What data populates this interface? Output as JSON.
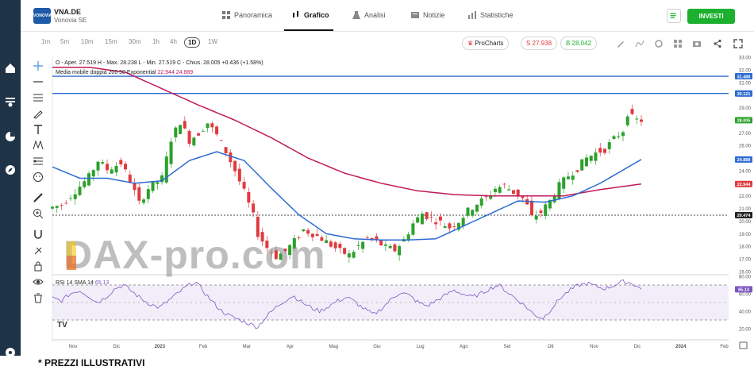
{
  "header": {
    "logo_text": "VONOVIA",
    "ticker": "VNA.DE",
    "company": "Vonovia SE",
    "tabs": [
      {
        "label": "Panoramica",
        "icon": "grid-icon"
      },
      {
        "label": "Grafico",
        "icon": "candles-icon"
      },
      {
        "label": "Analisi",
        "icon": "flask-icon"
      },
      {
        "label": "Notizie",
        "icon": "news-icon"
      },
      {
        "label": "Statistiche",
        "icon": "bars-icon"
      }
    ],
    "invest_label": "INVESTI"
  },
  "toolbar": {
    "timeframes": [
      "1m",
      "5m",
      "10m",
      "15m",
      "30m",
      "1h",
      "4h",
      "1D",
      "1W"
    ],
    "active_timeframe": "1D",
    "procharts_label": "ProCharts",
    "sell_label": "S 27.938",
    "buy_label": "B 28.042"
  },
  "legend": {
    "ohlc": "O - Aper. 27.519  H - Max. 28.238  L - Min. 27.519  C - Chius. 28.005  +0.436 (+1.58%)",
    "ma": "Media mobile doppia 200 50 Exponential",
    "ma_values": "22.944  24.889",
    "rsi": "RSI 14 SMA 14",
    "rsi_value": "65.13"
  },
  "colors": {
    "up": "#26a69a",
    "candle_up": "#2ca02c",
    "candle_down": "#e0393e",
    "ma200": "#c2185b",
    "ma50": "#2e6bd1",
    "hline": "#2e6bd1",
    "rsi": "#7e57c2",
    "rail": "#1f3346",
    "invest": "#1bb02e"
  },
  "watermark": "DAX-pro.com",
  "footnote": "* PREZZI ILLUSTRATIVI",
  "chart_data": {
    "type": "candlestick",
    "price_axis": {
      "min": 16,
      "max": 33,
      "ticks": [
        33,
        32,
        31,
        30,
        29,
        28,
        27,
        26,
        25,
        24,
        23,
        22,
        21,
        20,
        19,
        18,
        17,
        16
      ]
    },
    "rsi_axis": {
      "min": 20,
      "max": 80,
      "ticks": [
        80,
        60,
        40,
        20
      ],
      "bands": [
        70,
        30
      ]
    },
    "x_labels": [
      "Nov",
      "Dic",
      "2023",
      "Feb",
      "Mar",
      "Apr",
      "Mag",
      "Giu",
      "Lug",
      "Ago",
      "Set",
      "Ott",
      "Nov",
      "Dic",
      "2024",
      "Feb"
    ],
    "price_labels": [
      {
        "value": 31.488,
        "label": "31.488",
        "color": "#2e6bd1"
      },
      {
        "value": 30.121,
        "label": "30.121",
        "color": "#2e6bd1"
      },
      {
        "value": 28.005,
        "label": "28.005",
        "color": "#2ca02c"
      },
      {
        "value": 24.889,
        "label": "24.889",
        "color": "#2e6bd1"
      },
      {
        "value": 22.944,
        "label": "22.944",
        "color": "#e0393e"
      },
      {
        "value": 20.474,
        "label": "20.474",
        "color": "#222222"
      }
    ],
    "hlines": [
      31.488,
      30.121
    ],
    "dashed_hline": 20.474,
    "close_path": [
      [
        0,
        21.0
      ],
      [
        3,
        21.3
      ],
      [
        6,
        22.4
      ],
      [
        9,
        23.5
      ],
      [
        11,
        24.8
      ],
      [
        13,
        24.1
      ],
      [
        16,
        24.6
      ],
      [
        18,
        23.2
      ],
      [
        20,
        21.4
      ],
      [
        22,
        22.6
      ],
      [
        25,
        23.4
      ],
      [
        27,
        26.5
      ],
      [
        29,
        27.9
      ],
      [
        31,
        26.4
      ],
      [
        33,
        27.0
      ],
      [
        35,
        27.8
      ],
      [
        37,
        26.8
      ],
      [
        39,
        25.5
      ],
      [
        41,
        24.0
      ],
      [
        43,
        22.3
      ],
      [
        45,
        20.4
      ],
      [
        46,
        19.0
      ],
      [
        48,
        17.9
      ],
      [
        50,
        17.2
      ],
      [
        52,
        17.6
      ],
      [
        54,
        18.4
      ],
      [
        56,
        19.3
      ],
      [
        58,
        19.0
      ],
      [
        60,
        18.6
      ],
      [
        62,
        18.1
      ],
      [
        64,
        17.6
      ],
      [
        66,
        17.3
      ],
      [
        68,
        18.0
      ],
      [
        70,
        18.6
      ],
      [
        72,
        18.4
      ],
      [
        74,
        17.9
      ],
      [
        76,
        17.7
      ],
      [
        78,
        18.5
      ],
      [
        80,
        19.8
      ],
      [
        82,
        20.6
      ],
      [
        84,
        20.2
      ],
      [
        86,
        19.9
      ],
      [
        88,
        19.5
      ],
      [
        90,
        20.0
      ],
      [
        92,
        20.8
      ],
      [
        94,
        21.4
      ],
      [
        96,
        21.8
      ],
      [
        98,
        22.6
      ],
      [
        100,
        22.8
      ],
      [
        102,
        22.3
      ],
      [
        104,
        21.8
      ],
      [
        105,
        21.2
      ],
      [
        106,
        20.3
      ],
      [
        108,
        20.7
      ],
      [
        110,
        21.6
      ],
      [
        112,
        22.8
      ],
      [
        114,
        23.6
      ],
      [
        116,
        24.2
      ],
      [
        118,
        25.0
      ],
      [
        120,
        25.4
      ],
      [
        122,
        25.7
      ],
      [
        124,
        26.5
      ],
      [
        126,
        27.2
      ],
      [
        127,
        28.6
      ],
      [
        128,
        28.2
      ],
      [
        129,
        28.0
      ]
    ],
    "ma200": [
      [
        0,
        32.2
      ],
      [
        8,
        32.2
      ],
      [
        16,
        31.8
      ],
      [
        24,
        30.5
      ],
      [
        32,
        29.2
      ],
      [
        40,
        28.0
      ],
      [
        48,
        26.6
      ],
      [
        56,
        25.0
      ],
      [
        64,
        23.8
      ],
      [
        72,
        23.0
      ],
      [
        80,
        22.4
      ],
      [
        88,
        22.1
      ],
      [
        96,
        22.0
      ],
      [
        104,
        22.0
      ],
      [
        112,
        22.0
      ],
      [
        120,
        22.5
      ],
      [
        129,
        22.944
      ]
    ],
    "ma50": [
      [
        0,
        24.3
      ],
      [
        6,
        23.4
      ],
      [
        12,
        23.4
      ],
      [
        18,
        23.0
      ],
      [
        24,
        23.2
      ],
      [
        30,
        24.8
      ],
      [
        36,
        25.5
      ],
      [
        42,
        24.8
      ],
      [
        48,
        22.6
      ],
      [
        54,
        20.5
      ],
      [
        60,
        19.0
      ],
      [
        66,
        18.6
      ],
      [
        72,
        18.5
      ],
      [
        78,
        18.5
      ],
      [
        84,
        18.6
      ],
      [
        90,
        19.6
      ],
      [
        96,
        20.6
      ],
      [
        102,
        21.6
      ],
      [
        108,
        21.5
      ],
      [
        114,
        22.0
      ],
      [
        120,
        23.0
      ],
      [
        129,
        24.889
      ]
    ],
    "rsi_series": [
      55,
      52,
      60,
      64,
      58,
      50,
      56,
      66,
      70,
      62,
      54,
      48,
      44,
      52,
      60,
      68,
      74,
      62,
      50,
      40,
      34,
      30,
      26,
      22,
      34,
      44,
      52,
      58,
      50,
      44,
      40,
      46,
      52,
      56,
      50,
      42,
      36,
      44,
      54,
      62,
      58,
      50,
      46,
      52,
      58,
      64,
      60,
      56,
      60,
      66,
      70,
      62,
      54,
      46,
      36,
      32,
      44,
      56,
      64,
      70,
      72,
      68,
      66,
      70,
      74,
      72,
      65.13
    ],
    "series": [
      {
        "name": "Media mobile doppia 200",
        "value": 22.944
      },
      {
        "name": "Media mobile doppia 50",
        "value": 24.889
      },
      {
        "name": "RSI 14",
        "value": 65.13
      }
    ]
  }
}
